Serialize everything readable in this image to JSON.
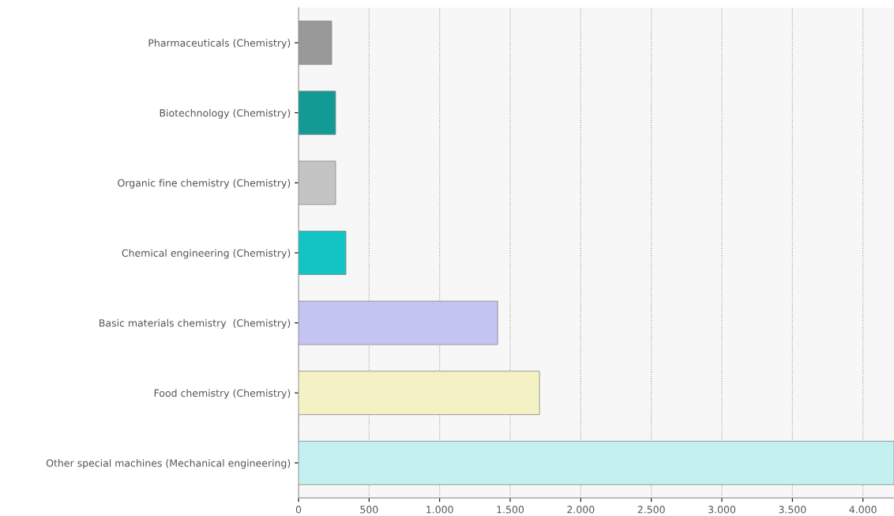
{
  "chart_data": {
    "type": "bar",
    "orientation": "horizontal",
    "categories": [
      "Pharmaceuticals (Chemistry)",
      "Biotechnology (Chemistry)",
      "Organic fine chemistry (Chemistry)",
      "Chemical engineering (Chemistry)",
      "Basic materials chemistry  (Chemistry)",
      "Food chemistry (Chemistry)",
      "Other special machines (Mechanical engineering)"
    ],
    "values": [
      235,
      263,
      263,
      336,
      1411,
      1708,
      4220
    ],
    "colors": [
      "#999999",
      "#139a95",
      "#c4c4c4",
      "#12c4c4",
      "#c4c4f2",
      "#f4f2c4",
      "#c4f0f0"
    ],
    "xlim": [
      0,
      4220
    ],
    "xticks": [
      0,
      500,
      {
        "value": 1000,
        "label": "1.000"
      },
      {
        "value": 1500,
        "label": "1.500"
      },
      {
        "value": 2000,
        "label": "2.000"
      },
      {
        "value": 2500,
        "label": "2.500"
      },
      {
        "value": 3000,
        "label": "3.000"
      },
      {
        "value": 3500,
        "label": "3.500"
      },
      {
        "value": 4000,
        "label": "4.000"
      }
    ],
    "grid": "x"
  }
}
